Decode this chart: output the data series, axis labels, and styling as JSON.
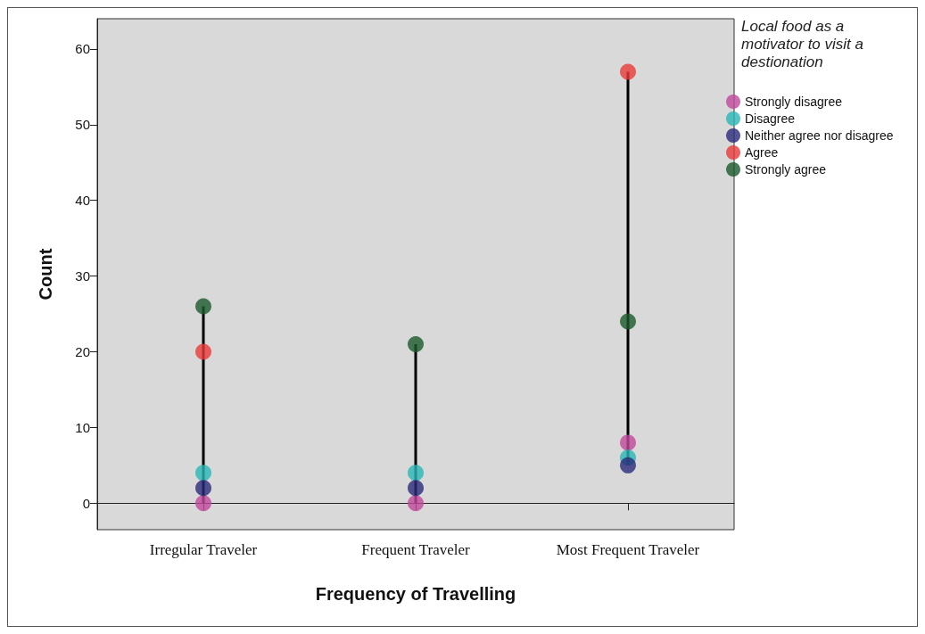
{
  "chart_data": {
    "type": "scatter",
    "xlabel": "Frequency of Travelling",
    "ylabel": "Count",
    "legend_title": "Local food as a motivator to visit a destionation",
    "categories": [
      "Irregular Traveler",
      "Frequent Traveler",
      "Most Frequent Traveler"
    ],
    "series": [
      {
        "name": "Strongly disagree",
        "color": "#c0479a",
        "values": [
          0,
          0,
          8
        ]
      },
      {
        "name": "Disagree",
        "color": "#2ab5b5",
        "values": [
          4,
          4,
          6
        ]
      },
      {
        "name": "Neither agree nor disagree",
        "color": "#2a2a7a",
        "values": [
          2,
          2,
          5
        ]
      },
      {
        "name": "Agree",
        "color": "#e83a3a",
        "values": [
          20,
          null,
          57
        ]
      },
      {
        "name": "Strongly agree",
        "color": "#1a5a2a",
        "values": [
          26,
          21,
          24
        ]
      }
    ],
    "ylim": [
      -3.5,
      64
    ],
    "yticks": [
      0,
      10,
      20,
      30,
      40,
      50,
      60
    ],
    "grid": false,
    "legend": "top right",
    "marker": "circle"
  }
}
